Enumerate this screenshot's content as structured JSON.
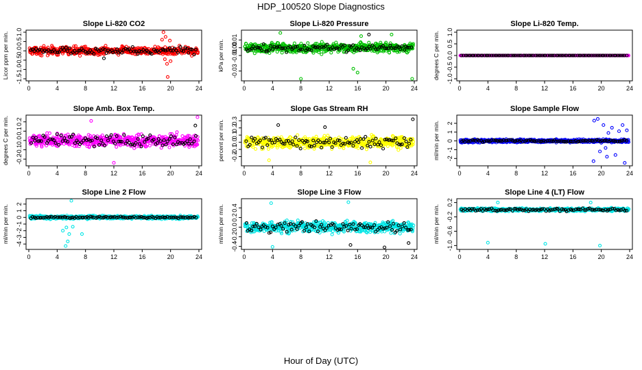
{
  "title": "HDP_100520  Slope Diagnostics",
  "xlabel": "Hour of Day (UTC)",
  "chart_data": [
    {
      "type": "scatter",
      "title": "Slope Li-820 CO2",
      "ylabel": "Licor ppm per min.",
      "color": "#ff0000",
      "xlim": [
        0,
        24
      ],
      "ylim": [
        -1.5,
        1.0
      ],
      "yticks": [
        -1.5,
        -1.0,
        -0.5,
        0.0,
        0.5,
        1.0
      ],
      "xticks": [
        0,
        4,
        8,
        12,
        16,
        20,
        24
      ],
      "spread": 0.3,
      "black_spread": 0.22,
      "outliers": [
        [
          19.0,
          1.0
        ],
        [
          19.2,
          -0.45
        ],
        [
          19.5,
          -0.7
        ],
        [
          19.6,
          -1.4
        ],
        [
          20.0,
          -0.55
        ],
        [
          18.8,
          0.6
        ],
        [
          19.9,
          0.55
        ],
        [
          19.3,
          0.75
        ]
      ],
      "black_outliers": [
        [
          10.6,
          -0.4
        ]
      ]
    },
    {
      "type": "scatter",
      "title": "Slope Li-820 Pressure",
      "ylabel": "kPa per min.",
      "color": "#00c000",
      "xlim": [
        0,
        24
      ],
      "ylim": [
        -0.04,
        0.02
      ],
      "yticks": [
        -0.03,
        -0.01,
        0.0,
        0.01
      ],
      "xticks": [
        0,
        4,
        8,
        12,
        16,
        20,
        24
      ],
      "spread": 0.009,
      "black_spread": 0.006,
      "outliers": [
        [
          8.0,
          -0.04
        ],
        [
          23.7,
          -0.04
        ],
        [
          16.0,
          -0.032
        ],
        [
          15.4,
          -0.027
        ],
        [
          5.1,
          0.019
        ],
        [
          16.5,
          0.015
        ],
        [
          20.8,
          0.017
        ]
      ],
      "black_outliers": [
        [
          17.6,
          0.017
        ]
      ]
    },
    {
      "type": "scatter",
      "title": "Slope Li-820 Temp.",
      "ylabel": "degrees C per min.",
      "color": "#ff00ff",
      "xlim": [
        0,
        24
      ],
      "ylim": [
        -1.0,
        1.0
      ],
      "yticks": [
        -1.0,
        -0.5,
        0.0,
        0.5,
        1.0
      ],
      "xticks": [
        0,
        4,
        8,
        12,
        16,
        20,
        24
      ],
      "spread": 0.0,
      "black_spread": 0.0,
      "outliers": [],
      "black_outliers": []
    },
    {
      "type": "scatter",
      "title": "Slope Amb. Box Temp.",
      "ylabel": "degrees C per min.",
      "color": "#ff00ff",
      "xlim": [
        0,
        24
      ],
      "ylim": [
        -0.25,
        0.25
      ],
      "yticks": [
        -0.2,
        -0.1,
        0.0,
        0.1,
        0.2
      ],
      "xticks": [
        0,
        4,
        8,
        12,
        16,
        20,
        24
      ],
      "spread": 0.1,
      "black_spread": 0.08,
      "outliers": [
        [
          23.8,
          0.25
        ],
        [
          12.0,
          -0.24
        ],
        [
          8.8,
          0.21
        ]
      ],
      "black_outliers": [
        [
          23.5,
          0.16
        ]
      ]
    },
    {
      "type": "scatter",
      "title": "Slope Gas Stream RH",
      "ylabel": "percent per min.",
      "color": "#ffff00",
      "xlim": [
        0,
        24
      ],
      "ylim": [
        -0.3,
        0.35
      ],
      "yticks": [
        -0.2,
        -0.1,
        0.0,
        0.1,
        0.2,
        0.3
      ],
      "xticks": [
        0,
        4,
        8,
        12,
        16,
        20,
        24
      ],
      "spread": 0.12,
      "black_spread": 0.1,
      "outliers": [
        [
          17.8,
          -0.28
        ],
        [
          3.5,
          -0.25
        ]
      ],
      "black_outliers": [
        [
          23.8,
          0.32
        ],
        [
          4.8,
          0.24
        ],
        [
          11.4,
          0.21
        ]
      ]
    },
    {
      "type": "scatter",
      "title": "Slope Sample Flow",
      "ylabel": "ml/min per min.",
      "color": "#0000ff",
      "xlim": [
        0,
        24
      ],
      "ylim": [
        -2.6,
        2.7
      ],
      "yticks": [
        -2,
        -1,
        0,
        1,
        2
      ],
      "xticks": [
        0,
        4,
        8,
        12,
        16,
        20,
        24
      ],
      "spread": 0.25,
      "black_spread": 0.15,
      "outliers": [
        [
          19.0,
          2.3
        ],
        [
          19.5,
          2.5
        ],
        [
          20.3,
          1.8
        ],
        [
          20.8,
          -1.8
        ],
        [
          21.5,
          1.5
        ],
        [
          23.3,
          -2.5
        ],
        [
          23.0,
          1.8
        ],
        [
          18.9,
          -2.3
        ],
        [
          22.0,
          -1.6
        ],
        [
          21.0,
          0.9
        ],
        [
          19.8,
          -1.2
        ],
        [
          22.5,
          1.1
        ],
        [
          23.6,
          1.2
        ],
        [
          20.6,
          -0.8
        ]
      ],
      "black_outliers": []
    },
    {
      "type": "scatter",
      "title": "Slope Line 2 Flow",
      "ylabel": "ml/min per min.",
      "color": "#00e5e5",
      "xlim": [
        0,
        24
      ],
      "ylim": [
        -4.5,
        2.5
      ],
      "yticks": [
        -4,
        -3,
        -2,
        -1,
        0,
        1,
        2
      ],
      "xticks": [
        0,
        4,
        8,
        12,
        16,
        20,
        24
      ],
      "spread": 0.35,
      "black_spread": 0.15,
      "outliers": [
        [
          5.2,
          -4.3
        ],
        [
          5.5,
          -3.6
        ],
        [
          5.7,
          -2.5
        ],
        [
          6.2,
          -1.4
        ],
        [
          7.5,
          -2.5
        ],
        [
          6.0,
          2.5
        ],
        [
          5.3,
          -1.5
        ],
        [
          4.8,
          -2.0
        ]
      ],
      "black_outliers": []
    },
    {
      "type": "scatter",
      "title": "Slope Line 3 Flow",
      "ylabel": "ml/min per min.",
      "color": "#00e5e5",
      "xlim": [
        0,
        24
      ],
      "ylim": [
        -0.42,
        0.55
      ],
      "yticks": [
        -0.4,
        -0.2,
        0.0,
        0.2,
        0.4
      ],
      "xticks": [
        0,
        4,
        8,
        12,
        16,
        20,
        24
      ],
      "spread": 0.16,
      "black_spread": 0.14,
      "outliers": [
        [
          4.0,
          -0.41
        ],
        [
          14.7,
          0.52
        ],
        [
          3.8,
          0.5
        ]
      ],
      "black_outliers": [
        [
          15.0,
          -0.37
        ],
        [
          19.8,
          -0.42
        ],
        [
          23.2,
          -0.33
        ]
      ]
    },
    {
      "type": "scatter",
      "title": "Slope Line 4 (LT) Flow",
      "ylabel": "ml/min per min.",
      "color": "#00e5e5",
      "xlim": [
        0,
        24
      ],
      "ylim": [
        -1.05,
        0.25
      ],
      "yticks": [
        -1.0,
        -0.6,
        -0.2,
        0.2
      ],
      "xticks": [
        0,
        4,
        8,
        12,
        16,
        20,
        24
      ],
      "spread": 0.06,
      "black_spread": 0.05,
      "outliers": [
        [
          4.0,
          -0.92
        ],
        [
          12.1,
          -0.95
        ],
        [
          19.8,
          -1.0
        ],
        [
          18.5,
          0.2
        ],
        [
          5.4,
          0.2
        ]
      ],
      "black_outliers": []
    }
  ]
}
